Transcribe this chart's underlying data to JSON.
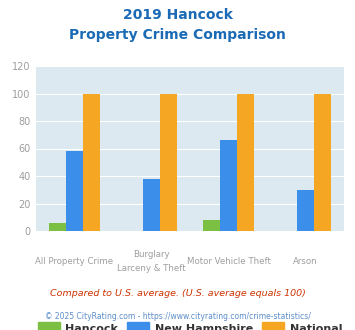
{
  "title_line1": "2019 Hancock",
  "title_line2": "Property Crime Comparison",
  "cat_labels_line1": [
    "All Property Crime",
    "Burglary",
    "Motor Vehicle Theft",
    "Arson"
  ],
  "cat_labels_line2": [
    "",
    "Larceny & Theft",
    "",
    ""
  ],
  "hancock_values": [
    6,
    0,
    8,
    0
  ],
  "nh_values": [
    58,
    38,
    66,
    30
  ],
  "national_values": [
    100,
    100,
    100,
    100
  ],
  "hancock_color": "#7bc043",
  "nh_color": "#3b8eea",
  "national_color": "#f5a623",
  "background_color": "#dce9f0",
  "ylim": [
    0,
    120
  ],
  "yticks": [
    0,
    20,
    40,
    60,
    80,
    100,
    120
  ],
  "legend_labels": [
    "Hancock",
    "New Hampshire",
    "National"
  ],
  "footnote1": "Compared to U.S. average. (U.S. average equals 100)",
  "footnote2": "© 2025 CityRating.com - https://www.cityrating.com/crime-statistics/",
  "title_color": "#1a6ab5",
  "tick_color": "#9e9e9e",
  "footnote1_color": "#cc3300",
  "footnote2_color": "#5b8dc9",
  "footnote2_url_color": "#3b8eea"
}
